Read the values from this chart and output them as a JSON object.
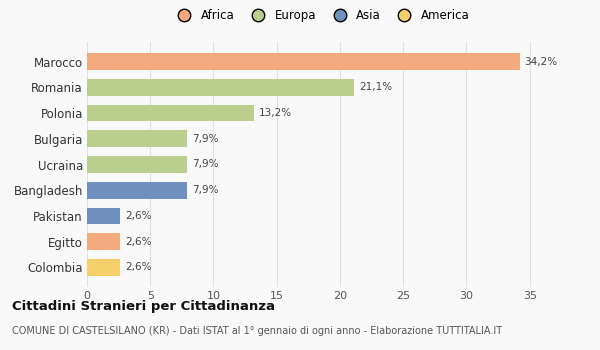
{
  "countries": [
    "Marocco",
    "Romania",
    "Polonia",
    "Bulgaria",
    "Ucraina",
    "Bangladesh",
    "Pakistan",
    "Egitto",
    "Colombia"
  ],
  "values": [
    34.2,
    21.1,
    13.2,
    7.9,
    7.9,
    7.9,
    2.6,
    2.6,
    2.6
  ],
  "labels": [
    "34,2%",
    "21,1%",
    "13,2%",
    "7,9%",
    "7,9%",
    "7,9%",
    "2,6%",
    "2,6%",
    "2,6%"
  ],
  "colors": [
    "#F2AA7E",
    "#BACF8E",
    "#BACF8E",
    "#BACF8E",
    "#BACF8E",
    "#7090BE",
    "#7090BE",
    "#F2AA7E",
    "#F5D06A"
  ],
  "legend_labels": [
    "Africa",
    "Europa",
    "Asia",
    "America"
  ],
  "legend_colors": [
    "#F2AA7E",
    "#BACF8E",
    "#7090BE",
    "#F5D06A"
  ],
  "xlim": [
    0,
    37
  ],
  "xticks": [
    0,
    5,
    10,
    15,
    20,
    25,
    30,
    35
  ],
  "title": "Cittadini Stranieri per Cittadinanza",
  "subtitle": "COMUNE DI CASTELSILANO (KR) - Dati ISTAT al 1° gennaio di ogni anno - Elaborazione TUTTITALIA.IT",
  "bg_color": "#f9f9f9",
  "grid_color": "#e0e0e0",
  "bar_height": 0.65
}
